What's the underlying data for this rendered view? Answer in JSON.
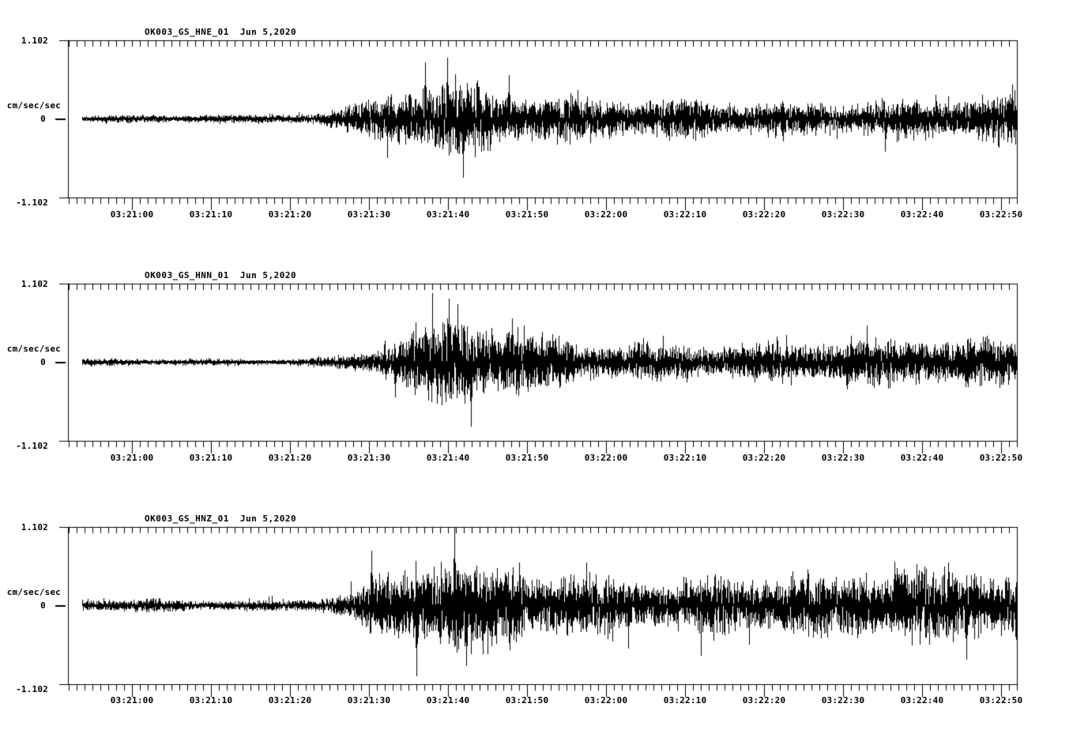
{
  "page": {
    "background": "#ffffff"
  },
  "chart_data": {
    "type": "line",
    "subtype": "seismogram-multipanel",
    "panels_count": 3,
    "trace_color": "#000000",
    "grid": "off",
    "y_axis": {
      "units_label": "cm/sec/sec",
      "max_label": "1.102",
      "zero_label": "0",
      "min_label": "-1.102",
      "ylim": [
        -1.102,
        1.102
      ]
    },
    "x_axis": {
      "tick_labels": [
        "03:21:00",
        "03:21:10",
        "03:21:20",
        "03:21:30",
        "03:21:40",
        "03:21:50",
        "03:22:00",
        "03:22:10",
        "03:22:20",
        "03:22:30",
        "03:22:40",
        "03:22:50"
      ],
      "minor_ticks_per_major": 10,
      "seconds_per_major": 10
    },
    "channels": [
      {
        "station": "OK003_GS_HNE_01",
        "date": "Jun 5,2020",
        "envelope": [
          [
            0.016,
            0.045
          ],
          [
            0.178,
            0.045
          ],
          [
            0.236,
            0.055
          ],
          [
            0.271,
            0.08
          ],
          [
            0.303,
            0.17
          ],
          [
            0.328,
            0.28
          ],
          [
            0.353,
            0.39
          ],
          [
            0.374,
            0.46
          ],
          [
            0.407,
            0.45
          ],
          [
            0.445,
            0.42
          ],
          [
            0.482,
            0.28
          ],
          [
            0.511,
            0.24
          ],
          [
            0.578,
            0.23
          ],
          [
            0.678,
            0.21
          ],
          [
            0.778,
            0.2
          ],
          [
            0.878,
            0.23
          ],
          [
            0.952,
            0.24
          ],
          [
            1.0,
            0.27
          ]
        ],
        "spikes": [
          [
            0.376,
            0.79
          ],
          [
            0.4,
            0.86
          ],
          [
            0.416,
            -0.82
          ],
          [
            0.465,
            0.62
          ],
          [
            0.995,
            0.48
          ]
        ]
      },
      {
        "station": "OK003_GS_HNN_01",
        "date": "Jun 5,2020",
        "envelope": [
          [
            0.016,
            0.04
          ],
          [
            0.2,
            0.042
          ],
          [
            0.245,
            0.05
          ],
          [
            0.278,
            0.07
          ],
          [
            0.307,
            0.12
          ],
          [
            0.336,
            0.22
          ],
          [
            0.361,
            0.32
          ],
          [
            0.39,
            0.4
          ],
          [
            0.415,
            0.46
          ],
          [
            0.44,
            0.42
          ],
          [
            0.47,
            0.38
          ],
          [
            0.495,
            0.3
          ],
          [
            0.52,
            0.26
          ],
          [
            0.578,
            0.24
          ],
          [
            0.678,
            0.23
          ],
          [
            0.761,
            0.24
          ],
          [
            0.844,
            0.25
          ],
          [
            0.928,
            0.26
          ],
          [
            1.0,
            0.26
          ]
        ],
        "spikes": [
          [
            0.345,
            -0.5
          ],
          [
            0.401,
            0.89
          ],
          [
            0.425,
            -0.9
          ],
          [
            0.468,
            0.62
          ]
        ]
      },
      {
        "station": "OK003_GS_HNZ_01",
        "date": "Jun 5,2020",
        "envelope": [
          [
            0.016,
            0.07
          ],
          [
            0.22,
            0.07
          ],
          [
            0.261,
            0.09
          ],
          [
            0.295,
            0.17
          ],
          [
            0.32,
            0.28
          ],
          [
            0.345,
            0.38
          ],
          [
            0.37,
            0.46
          ],
          [
            0.399,
            0.5
          ],
          [
            0.428,
            0.46
          ],
          [
            0.461,
            0.42
          ],
          [
            0.503,
            0.38
          ],
          [
            0.553,
            0.34
          ],
          [
            0.636,
            0.33
          ],
          [
            0.719,
            0.35
          ],
          [
            0.803,
            0.34
          ],
          [
            0.869,
            0.38
          ],
          [
            0.952,
            0.42
          ],
          [
            1.0,
            0.38
          ]
        ],
        "spikes": [
          [
            0.32,
            0.77
          ],
          [
            0.367,
            -0.99
          ],
          [
            0.407,
            1.1
          ],
          [
            0.42,
            -0.85
          ],
          [
            0.871,
            0.62
          ],
          [
            0.947,
            -0.76
          ]
        ]
      }
    ]
  }
}
